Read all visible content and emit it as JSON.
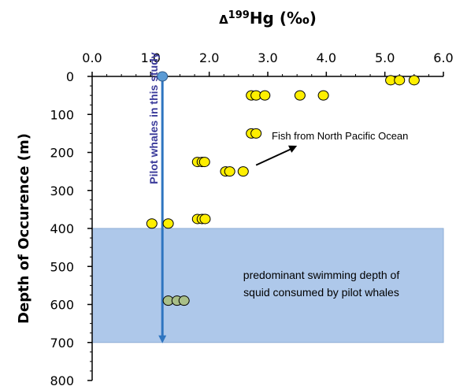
{
  "chart_data": {
    "type": "scatter",
    "title": "",
    "xlabel": {
      "prefix": "Δ",
      "sup": "199",
      "main": "Hg",
      "unit": "(‰)"
    },
    "ylabel": "Depth of Occurence (m)",
    "xlim": [
      0.0,
      6.0
    ],
    "ylim": [
      0,
      800
    ],
    "y_inverted": true,
    "x_axis_position": "top",
    "xticks": [
      "0.0",
      "1.0",
      "2.0",
      "3.0",
      "4.0",
      "5.0",
      "6.0"
    ],
    "yticks": [
      "0",
      "100",
      "200",
      "300",
      "400",
      "500",
      "600",
      "700",
      "800"
    ],
    "grid": false,
    "series": [
      {
        "color": "#ffef00",
        "points": [
          {
            "x": 5.1,
            "y": 10
          },
          {
            "x": 5.25,
            "y": 10
          },
          {
            "x": 5.5,
            "y": 10
          },
          {
            "x": 2.72,
            "y": 50
          },
          {
            "x": 2.8,
            "y": 50
          },
          {
            "x": 2.95,
            "y": 50
          },
          {
            "x": 3.55,
            "y": 50
          },
          {
            "x": 3.95,
            "y": 50
          },
          {
            "x": 2.72,
            "y": 150
          },
          {
            "x": 2.8,
            "y": 150
          },
          {
            "x": 1.8,
            "y": 225
          },
          {
            "x": 1.88,
            "y": 225
          },
          {
            "x": 1.92,
            "y": 225
          },
          {
            "x": 2.28,
            "y": 250
          },
          {
            "x": 2.35,
            "y": 250
          },
          {
            "x": 2.58,
            "y": 250
          },
          {
            "x": 1.8,
            "y": 375
          },
          {
            "x": 1.88,
            "y": 375
          },
          {
            "x": 1.93,
            "y": 375
          },
          {
            "x": 1.02,
            "y": 387
          },
          {
            "x": 1.3,
            "y": 387
          }
        ]
      },
      {
        "color": "#a9bf88",
        "points": [
          {
            "x": 1.3,
            "y": 590
          },
          {
            "x": 1.45,
            "y": 590
          },
          {
            "x": 1.57,
            "y": 590
          }
        ]
      },
      {
        "color": "#5b9bd5",
        "points": [
          {
            "x": 1.2,
            "y": 0
          }
        ]
      }
    ],
    "shaded_region": {
      "y_range": [
        400,
        700
      ],
      "color": "#aec8ea",
      "label_lines": [
        "predominant swimming depth of",
        "squid consumed by pilot whales"
      ]
    },
    "vertical_arrow": {
      "x": 1.2,
      "y_range": [
        0,
        700
      ],
      "color": "#2e75c0",
      "label": "Pilot whales in this study",
      "label_color": "#3a3a9a"
    },
    "annotation": {
      "text": "Fish from North Pacific Ocean",
      "arrow_from": {
        "x": 2.8,
        "y": 250
      },
      "arrow_to": {
        "x": 3.5,
        "y": 170
      }
    }
  }
}
